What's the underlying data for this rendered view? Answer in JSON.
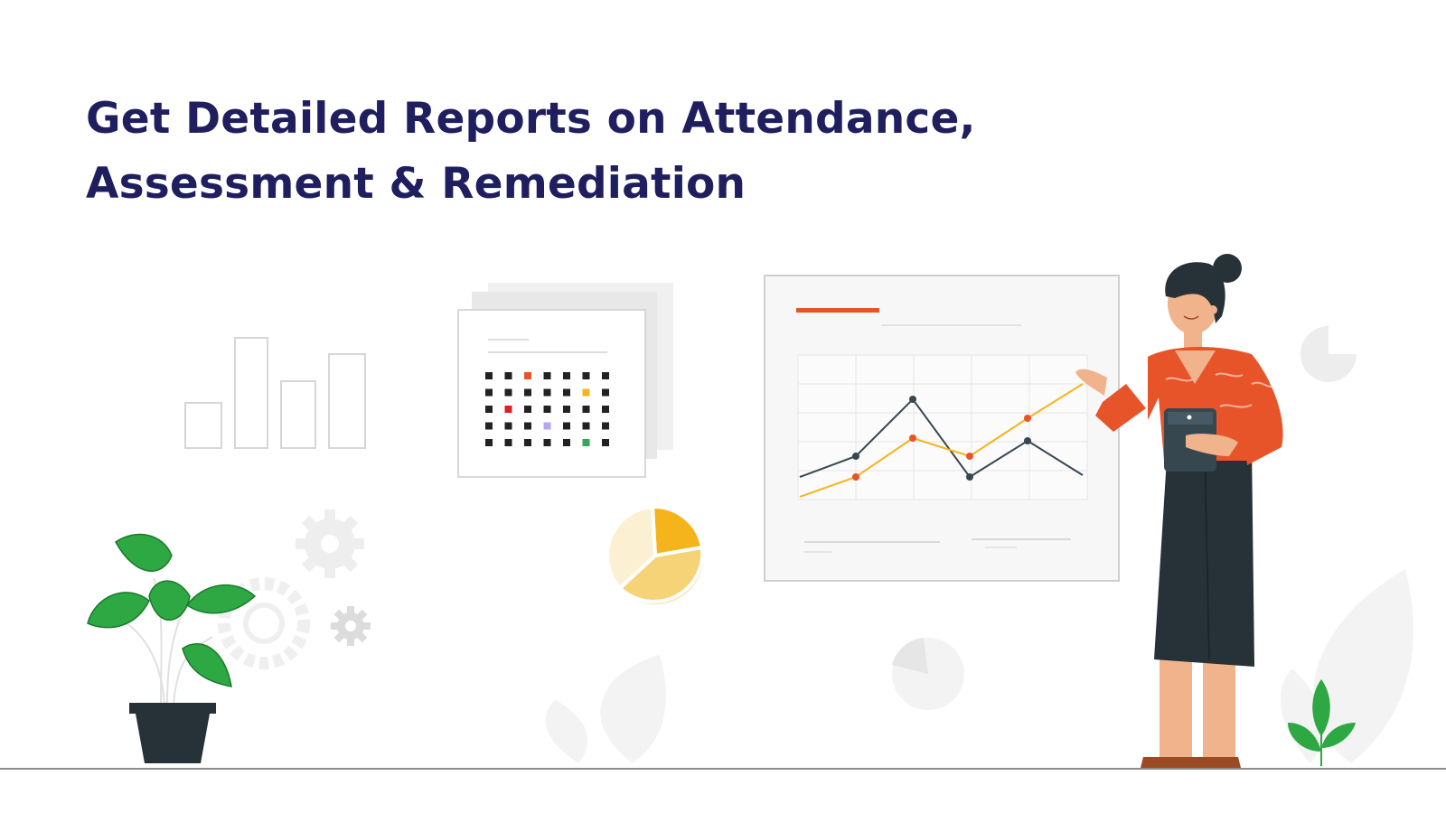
{
  "headline": {
    "line1": "Get Detailed Reports on Attendance,",
    "line2": "Assessment & Remediation"
  },
  "illustration": {
    "calendar_dots": [
      [
        "#222222",
        "#222222",
        "#e8542a",
        "#222222",
        "#222222",
        "#222222",
        "#222222"
      ],
      [
        "#222222",
        "#222222",
        "#222222",
        "#222222",
        "#222222",
        "#f5b41c",
        "#222222"
      ],
      [
        "#222222",
        "#e02020",
        "#222222",
        "#222222",
        "#222222",
        "#222222",
        "#222222"
      ],
      [
        "#222222",
        "#222222",
        "#222222",
        "#b8a6f5",
        "#222222",
        "#222222",
        "#222222"
      ],
      [
        "#222222",
        "#222222",
        "#222222",
        "#222222",
        "#222222",
        "#34a853",
        "#222222"
      ]
    ]
  },
  "colors": {
    "heading": "#1f1e5e",
    "accent_orange": "#e8542a",
    "accent_yellow": "#f5b41c",
    "plant_green": "#2ea843",
    "dark": "#263238"
  }
}
